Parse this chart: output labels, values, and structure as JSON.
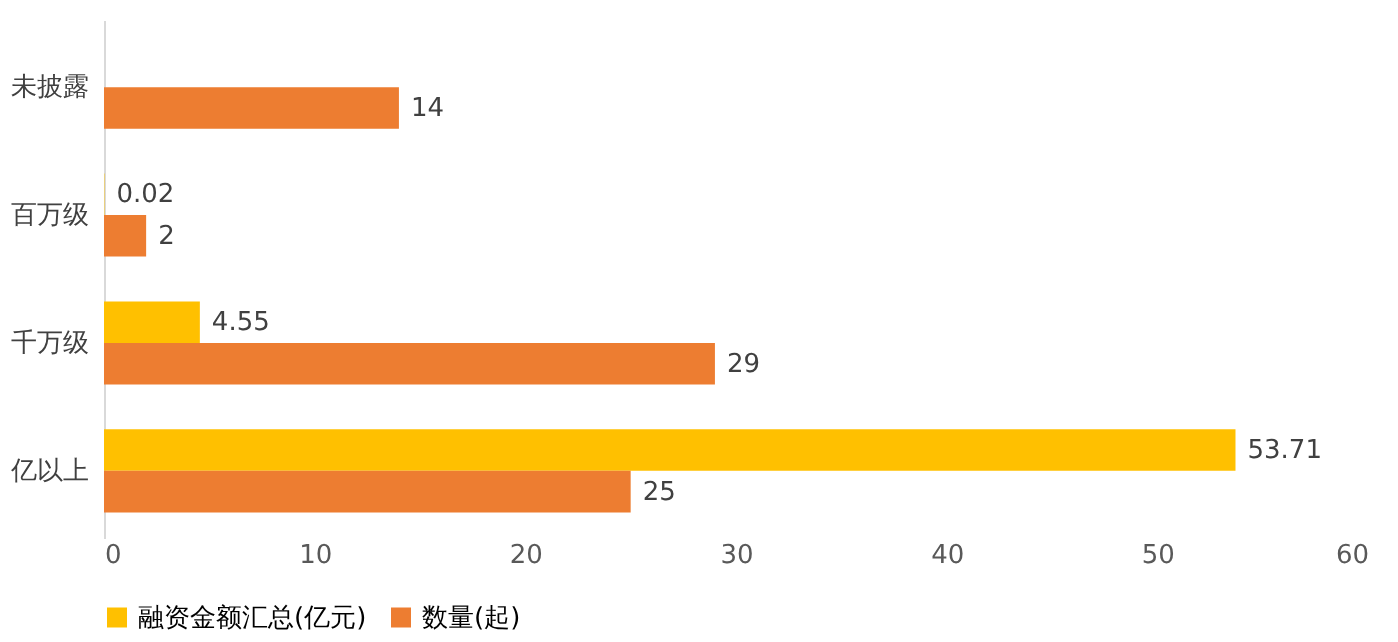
{
  "chart_data": {
    "type": "bar",
    "orientation": "horizontal",
    "categories": [
      "未披露",
      "百万级",
      "千万级",
      "亿以上"
    ],
    "series": [
      {
        "name": "融资金额汇总(亿元)",
        "color": "#ffc000",
        "values": [
          null,
          0.02,
          4.55,
          53.71
        ]
      },
      {
        "name": "数量(起)",
        "color": "#ed7d31",
        "values": [
          14,
          2,
          29,
          25
        ]
      }
    ],
    "xlim": [
      0,
      60
    ],
    "xticks": [
      0,
      10,
      20,
      30,
      40,
      50,
      60
    ],
    "grid": false,
    "legend": "bottom",
    "data_labels": true
  }
}
